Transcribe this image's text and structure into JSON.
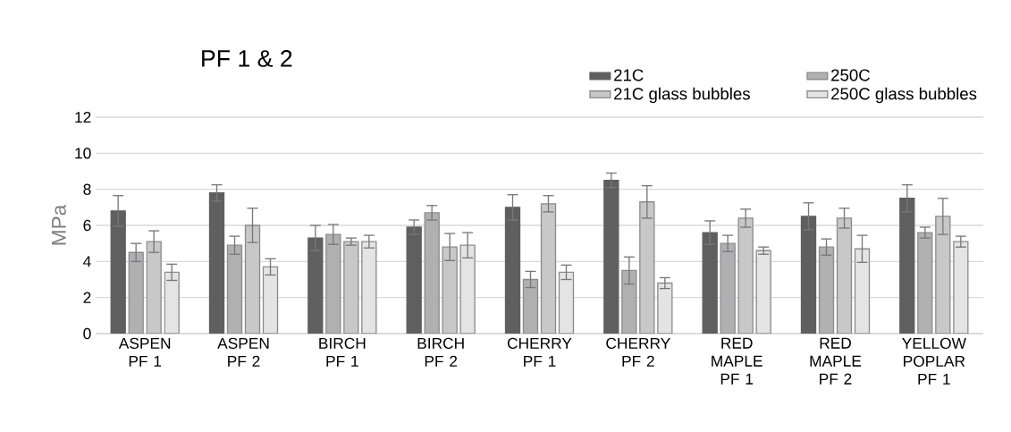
{
  "chart_data": {
    "type": "bar",
    "title": "PF 1 & 2",
    "ylabel": "MPa",
    "categories": [
      "ASPEN PF 1",
      "ASPEN PF 2",
      "BIRCH PF 1",
      "BIRCH PF 2",
      "CHERRY PF 1",
      "CHERRY PF 2",
      "RED MAPLE PF 1",
      "RED MAPLE PF 2",
      "YELLOW POPLAR PF 1"
    ],
    "series": [
      {
        "name": "21C",
        "color": "#5f5f5f",
        "values": [
          6.8,
          7.8,
          5.3,
          5.9,
          7.0,
          8.5,
          5.6,
          6.5,
          7.5
        ],
        "errors": [
          0.85,
          0.45,
          0.7,
          0.4,
          0.7,
          0.4,
          0.65,
          0.75,
          0.75
        ]
      },
      {
        "name": "250C",
        "color": "#b0b0b3",
        "values": [
          4.5,
          4.9,
          5.5,
          6.7,
          3.0,
          3.5,
          5.0,
          4.8,
          5.6
        ],
        "errors": [
          0.5,
          0.5,
          0.55,
          0.4,
          0.45,
          0.75,
          0.45,
          0.45,
          0.3
        ]
      },
      {
        "name": "21C glass bubbles",
        "color": "#c8c8c8",
        "values": [
          5.1,
          6.0,
          5.1,
          4.8,
          7.2,
          7.3,
          6.4,
          6.4,
          6.5
        ],
        "errors": [
          0.6,
          0.95,
          0.2,
          0.75,
          0.45,
          0.9,
          0.5,
          0.55,
          1.0
        ]
      },
      {
        "name": "250C glass bubbles",
        "color": "#e4e4e4",
        "values": [
          3.4,
          3.7,
          5.1,
          4.9,
          3.4,
          2.8,
          4.6,
          4.7,
          5.1
        ],
        "errors": [
          0.45,
          0.45,
          0.35,
          0.7,
          0.4,
          0.3,
          0.2,
          0.75,
          0.3
        ]
      }
    ],
    "ylim": [
      0,
      12
    ],
    "yticks": [
      0,
      2,
      4,
      6,
      8,
      10,
      12
    ],
    "grid": "y",
    "legend": "top right"
  }
}
